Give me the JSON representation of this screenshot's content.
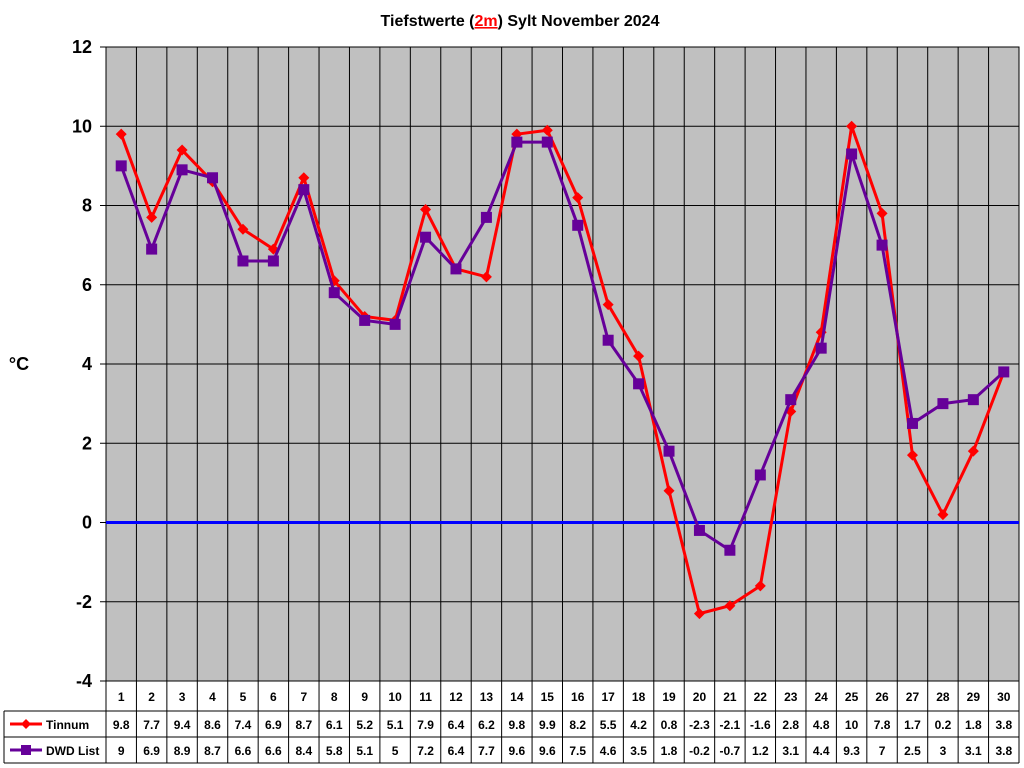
{
  "chart_data": {
    "type": "line",
    "title": {
      "before": "Tiefstwerte (",
      "highlight": "2m",
      "after": ") Sylt November 2024"
    },
    "ylabel": "°C",
    "xlabel": "",
    "ylim": [
      -4,
      12
    ],
    "yticks": [
      "12",
      "10",
      "8",
      "6",
      "4",
      "2",
      "0",
      "-2",
      "-4"
    ],
    "reference_line": {
      "value": 0,
      "color": "#0000ff"
    },
    "grid": true,
    "plot_background": "#c0c0c0",
    "legend": "data-table-below",
    "categories": [
      "1",
      "2",
      "3",
      "4",
      "5",
      "6",
      "7",
      "8",
      "9",
      "10",
      "11",
      "12",
      "13",
      "14",
      "15",
      "16",
      "17",
      "18",
      "19",
      "20",
      "21",
      "22",
      "23",
      "24",
      "25",
      "26",
      "27",
      "28",
      "29",
      "30"
    ],
    "series": [
      {
        "name": "Tinnum",
        "color": "#ff0000",
        "marker": "diamond",
        "values": [
          9.8,
          7.7,
          9.4,
          8.6,
          7.4,
          6.9,
          8.7,
          6.1,
          5.2,
          5.1,
          7.9,
          6.4,
          6.2,
          9.8,
          9.9,
          8.2,
          5.5,
          4.2,
          0.8,
          -2.3,
          -2.1,
          -1.6,
          2.8,
          4.8,
          10,
          7.8,
          1.7,
          0.2,
          1.8,
          3.8
        ],
        "labels": [
          "9.8",
          "7.7",
          "9.4",
          "8.6",
          "7.4",
          "6.9",
          "8.7",
          "6.1",
          "5.2",
          "5.1",
          "7.9",
          "6.4",
          "6.2",
          "9.8",
          "9.9",
          "8.2",
          "5.5",
          "4.2",
          "0.8",
          "-2.3",
          "-2.1",
          "-1.6",
          "2.8",
          "4.8",
          "10",
          "7.8",
          "1.7",
          "0.2",
          "1.8",
          "3.8"
        ]
      },
      {
        "name": "DWD List",
        "color": "#660099",
        "marker": "square",
        "values": [
          9,
          6.9,
          8.9,
          8.7,
          6.6,
          6.6,
          8.4,
          5.8,
          5.1,
          5,
          7.2,
          6.4,
          7.7,
          9.6,
          9.6,
          7.5,
          4.6,
          3.5,
          1.8,
          -0.2,
          -0.7,
          1.2,
          3.1,
          4.4,
          9.3,
          7,
          2.5,
          3,
          3.1,
          3.8
        ],
        "labels": [
          "9",
          "6.9",
          "8.9",
          "8.7",
          "6.6",
          "6.6",
          "8.4",
          "5.8",
          "5.1",
          "5",
          "7.2",
          "6.4",
          "7.7",
          "9.6",
          "9.6",
          "7.5",
          "4.6",
          "3.5",
          "1.8",
          "-0.2",
          "-0.7",
          "1.2",
          "3.1",
          "4.4",
          "9.3",
          "7",
          "2.5",
          "3",
          "3.1",
          "3.8"
        ]
      }
    ]
  }
}
